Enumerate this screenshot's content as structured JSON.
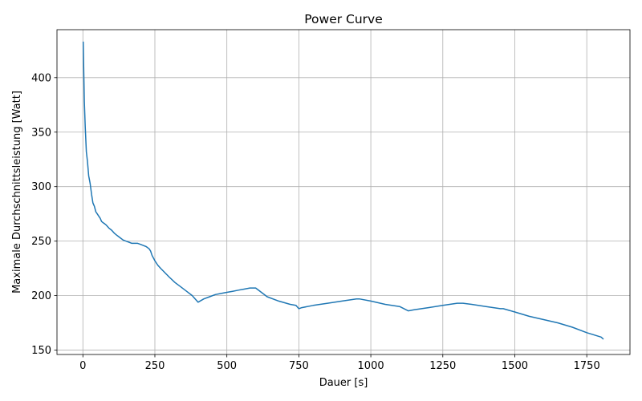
{
  "chart_data": {
    "type": "line",
    "title": "Power Curve",
    "xlabel": "Dauer [s]",
    "ylabel": "Maximale Durchschnittsleistung [Watt]",
    "xlim": [
      -90,
      1900
    ],
    "ylim": [
      146,
      444
    ],
    "xticks": [
      0,
      250,
      500,
      750,
      1000,
      1250,
      1500,
      1750
    ],
    "yticks": [
      150,
      200,
      250,
      300,
      350,
      400
    ],
    "grid": true,
    "series": [
      {
        "color": "#1f77b4",
        "x": [
          1,
          3,
          5,
          8,
          12,
          16,
          20,
          25,
          30,
          35,
          40,
          45,
          50,
          55,
          60,
          65,
          70,
          75,
          80,
          90,
          100,
          110,
          120,
          130,
          140,
          150,
          160,
          170,
          180,
          190,
          200,
          210,
          220,
          230,
          235,
          240,
          250,
          260,
          270,
          300,
          320,
          340,
          360,
          380,
          390,
          400,
          420,
          440,
          460,
          480,
          500,
          520,
          540,
          560,
          580,
          590,
          600,
          620,
          640,
          680,
          720,
          740,
          750,
          760,
          800,
          850,
          900,
          950,
          960,
          1000,
          1050,
          1100,
          1130,
          1150,
          1200,
          1250,
          1300,
          1320,
          1350,
          1400,
          1450,
          1460,
          1500,
          1550,
          1600,
          1650,
          1700,
          1750,
          1800,
          1808
        ],
        "y": [
          433,
          405,
          378,
          355,
          332,
          323,
          310,
          303,
          293,
          285,
          282,
          277,
          275,
          273,
          271,
          268,
          267,
          266,
          265,
          262,
          260,
          257,
          255,
          253,
          251,
          250,
          249,
          248,
          248,
          248,
          247,
          246,
          245,
          243,
          241,
          237,
          232,
          228,
          225,
          217,
          212,
          208,
          204,
          200,
          197,
          194,
          197,
          199,
          201,
          202,
          203,
          204,
          205,
          206,
          207,
          207,
          207,
          203,
          199,
          195,
          192,
          191,
          188,
          189,
          191,
          193,
          195,
          197,
          197,
          195,
          192,
          190,
          186,
          187,
          189,
          191,
          193,
          193,
          192,
          190,
          188,
          188,
          185,
          181,
          178,
          175,
          171,
          166,
          162,
          160
        ]
      }
    ]
  }
}
